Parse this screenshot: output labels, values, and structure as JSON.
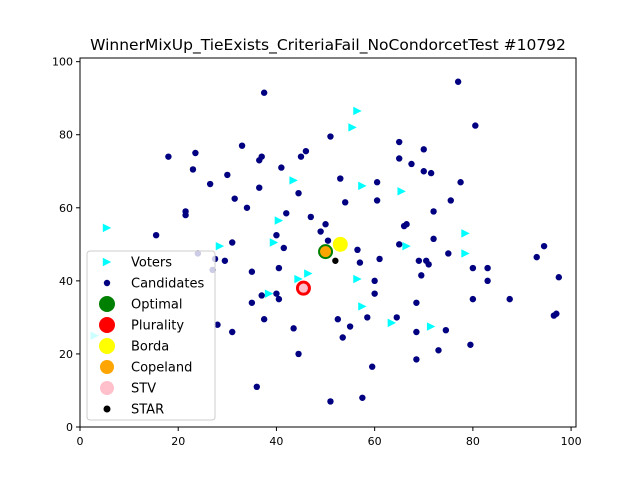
{
  "chart_data": {
    "type": "scatter",
    "title": "WinnerMixUp_TieExists_CriteriaFail_NoCondorcetTest #10792",
    "xlabel": "",
    "ylabel": "",
    "xlim": [
      0,
      101
    ],
    "ylim": [
      0,
      101
    ],
    "xticks": [
      0,
      20,
      40,
      60,
      80,
      100
    ],
    "yticks": [
      0,
      20,
      40,
      60,
      80,
      100
    ],
    "grid": false,
    "legend_position": "lower-left",
    "series": [
      {
        "name": "Voters",
        "marker": "triangle-right",
        "color": "#00ffff",
        "points": [
          [
            5.5,
            54.5
          ],
          [
            39.5,
            50.5
          ],
          [
            40.5,
            56.5
          ],
          [
            43.5,
            67.5
          ],
          [
            28.5,
            49.5
          ],
          [
            38.5,
            36.5
          ],
          [
            44.5,
            40.5
          ],
          [
            46.5,
            42
          ],
          [
            55.5,
            82
          ],
          [
            56.5,
            86.5
          ],
          [
            57.5,
            66
          ],
          [
            56.5,
            40.5
          ],
          [
            57.5,
            33
          ],
          [
            63.5,
            28.5
          ],
          [
            65.5,
            64.5
          ],
          [
            66.5,
            49.5
          ],
          [
            71.5,
            27.5
          ],
          [
            78.5,
            53
          ],
          [
            78.5,
            47.5
          ],
          [
            3,
            25
          ]
        ]
      },
      {
        "name": "Candidates",
        "marker": "circle",
        "color": "#000080",
        "points": [
          [
            15.5,
            52.5
          ],
          [
            18,
            74
          ],
          [
            21.5,
            58
          ],
          [
            21.5,
            59
          ],
          [
            23,
            70.5
          ],
          [
            23.5,
            75
          ],
          [
            24,
            47.5
          ],
          [
            26.5,
            66.5
          ],
          [
            27,
            43
          ],
          [
            27.5,
            46
          ],
          [
            28,
            28
          ],
          [
            29.5,
            45.5
          ],
          [
            30,
            69
          ],
          [
            31,
            26
          ],
          [
            31,
            50.5
          ],
          [
            31.5,
            62.5
          ],
          [
            33,
            77
          ],
          [
            34,
            60
          ],
          [
            35,
            34
          ],
          [
            35,
            42.5
          ],
          [
            36,
            11
          ],
          [
            36.5,
            65.5
          ],
          [
            36.5,
            73
          ],
          [
            37,
            36
          ],
          [
            37,
            74
          ],
          [
            37.5,
            91.5
          ],
          [
            37.5,
            29.5
          ],
          [
            40,
            36.5
          ],
          [
            40,
            52.5
          ],
          [
            40.5,
            43.5
          ],
          [
            40.5,
            35
          ],
          [
            41,
            71
          ],
          [
            41.5,
            49
          ],
          [
            42,
            58.5
          ],
          [
            43.5,
            27
          ],
          [
            44.5,
            20
          ],
          [
            44.5,
            64
          ],
          [
            45,
            74
          ],
          [
            46,
            38
          ],
          [
            46,
            75.5
          ],
          [
            47,
            57.5
          ],
          [
            49,
            53.5
          ],
          [
            50,
            55.5
          ],
          [
            50.5,
            51
          ],
          [
            51,
            79.5
          ],
          [
            51,
            7
          ],
          [
            52.5,
            29.5
          ],
          [
            53,
            68
          ],
          [
            53.5,
            24.5
          ],
          [
            54,
            61.5
          ],
          [
            55,
            27.5
          ],
          [
            56.5,
            48.5
          ],
          [
            57,
            45
          ],
          [
            57.5,
            8
          ],
          [
            58.5,
            30
          ],
          [
            59.5,
            16.5
          ],
          [
            60,
            36.5
          ],
          [
            60,
            40
          ],
          [
            60.5,
            67
          ],
          [
            60.5,
            62
          ],
          [
            61,
            46
          ],
          [
            64.5,
            30
          ],
          [
            65,
            50
          ],
          [
            65,
            73.5
          ],
          [
            65,
            78
          ],
          [
            66,
            55
          ],
          [
            66.5,
            55.5
          ],
          [
            67.5,
            72
          ],
          [
            68.5,
            34
          ],
          [
            68.5,
            18.5
          ],
          [
            68.5,
            26
          ],
          [
            69,
            45.5
          ],
          [
            69.5,
            41.5
          ],
          [
            70,
            76
          ],
          [
            70,
            70
          ],
          [
            70.5,
            45.5
          ],
          [
            71,
            44.5
          ],
          [
            71.5,
            69.5
          ],
          [
            72,
            59
          ],
          [
            72,
            51.5
          ],
          [
            73,
            21
          ],
          [
            74.5,
            26.5
          ],
          [
            75,
            47.5
          ],
          [
            75.5,
            62
          ],
          [
            77,
            94.5
          ],
          [
            77.5,
            67
          ],
          [
            79.5,
            22.5
          ],
          [
            80,
            43.5
          ],
          [
            80,
            35
          ],
          [
            80.5,
            82.5
          ],
          [
            83,
            40
          ],
          [
            83,
            43.5
          ],
          [
            87.5,
            35
          ],
          [
            93,
            46.5
          ],
          [
            94.5,
            49.5
          ],
          [
            96.5,
            30.5
          ],
          [
            97,
            31
          ],
          [
            97.5,
            41
          ]
        ]
      },
      {
        "name": "Optimal",
        "marker": "ring",
        "color": "#008000",
        "points": [
          [
            50,
            48
          ]
        ]
      },
      {
        "name": "Plurality",
        "marker": "ring",
        "color": "#ff0000",
        "points": [
          [
            45.5,
            38
          ]
        ]
      },
      {
        "name": "Borda",
        "marker": "circle",
        "color": "#ffff00",
        "points": [
          [
            53,
            50
          ]
        ]
      },
      {
        "name": "Copeland",
        "marker": "circle",
        "color": "#ffa500",
        "points": [
          [
            50,
            48
          ]
        ]
      },
      {
        "name": "STV",
        "marker": "circle",
        "color": "#ffc0cb",
        "points": [
          [
            45.5,
            38
          ]
        ]
      },
      {
        "name": "STAR",
        "marker": "circle",
        "color": "#000000",
        "points": [
          [
            52,
            45.5
          ]
        ]
      }
    ]
  }
}
